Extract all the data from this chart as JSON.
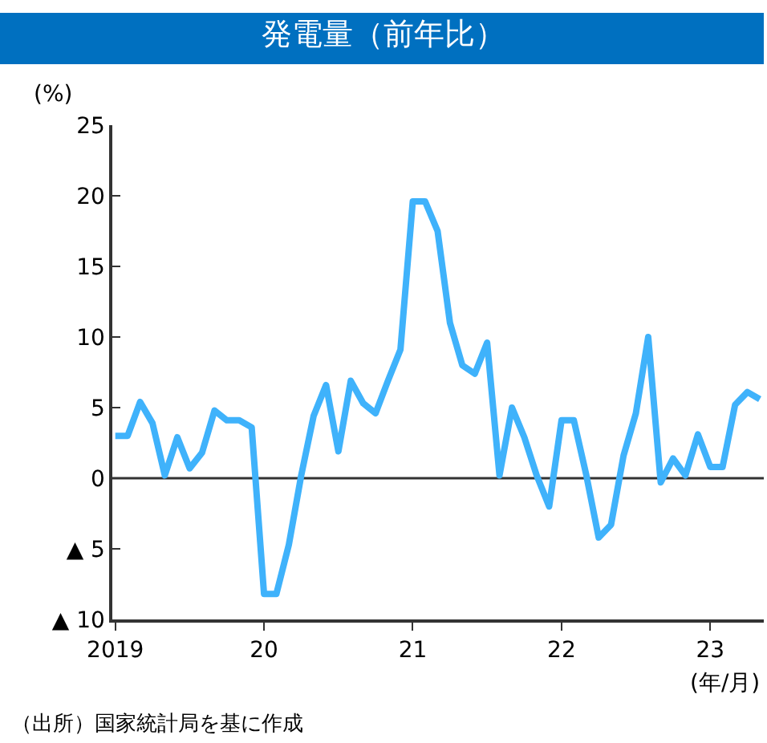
{
  "chart_data": {
    "type": "line",
    "title": "発電量（前年比）",
    "ylabel": "(%)",
    "xlabel": "(年/月)",
    "annotations": [
      "（出所）国家統計局を基に作成"
    ],
    "x": [
      2019.0,
      2019.083,
      2019.167,
      2019.25,
      2019.333,
      2019.417,
      2019.5,
      2019.583,
      2019.667,
      2019.75,
      2019.833,
      2019.917,
      2020.0,
      2020.083,
      2020.167,
      2020.25,
      2020.333,
      2020.417,
      2020.5,
      2020.583,
      2020.667,
      2020.75,
      2020.833,
      2020.917,
      2021.0,
      2021.083,
      2021.167,
      2021.25,
      2021.333,
      2021.417,
      2021.5,
      2021.583,
      2021.667,
      2021.75,
      2021.833,
      2021.917,
      2022.0,
      2022.083,
      2022.167,
      2022.25,
      2022.333,
      2022.417,
      2022.5,
      2022.583,
      2022.667,
      2022.75,
      2022.833,
      2022.917,
      2023.0,
      2023.083,
      2023.167,
      2023.25,
      2023.333
    ],
    "series": [
      {
        "color": "#3fb2fb",
        "values": [
          3.0,
          3.0,
          5.4,
          3.9,
          0.2,
          2.9,
          0.7,
          1.8,
          4.8,
          4.1,
          4.1,
          3.6,
          -8.2,
          -8.2,
          -4.7,
          0.2,
          4.4,
          6.6,
          1.9,
          6.9,
          5.3,
          4.6,
          6.9,
          9.1,
          19.6,
          19.6,
          17.5,
          11.0,
          8.0,
          7.4,
          9.6,
          0.2,
          5.0,
          2.9,
          0.2,
          -2.0,
          4.1,
          4.1,
          0.2,
          -4.2,
          -3.3,
          1.6,
          4.6,
          10.0,
          -0.3,
          1.4,
          0.2,
          3.1,
          0.8,
          0.8,
          5.2,
          6.1,
          5.6
        ]
      }
    ],
    "xlim": [
      2018.98,
      2023.36
    ],
    "xticks": [
      {
        "value": 2019,
        "label": "2019"
      },
      {
        "value": 2020,
        "label": "20"
      },
      {
        "value": 2021,
        "label": "21"
      },
      {
        "value": 2022,
        "label": "22"
      },
      {
        "value": 2023,
        "label": "23"
      }
    ],
    "ylim": [
      -10,
      25
    ],
    "yticks": [
      {
        "value": -10,
        "label": "▲ 10"
      },
      {
        "value": -5,
        "label": "▲ 5"
      },
      0,
      5,
      10,
      15,
      20,
      25
    ],
    "ref_lines": [
      {
        "axis": "y",
        "value": 0,
        "color": "#333333"
      }
    ],
    "grid": false,
    "marker": "none",
    "line_style": "solid"
  }
}
